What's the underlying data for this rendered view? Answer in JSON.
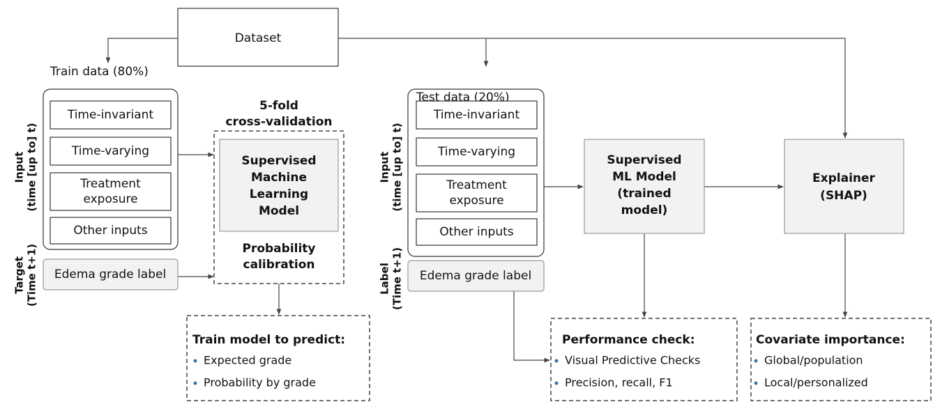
{
  "dataset": "Dataset",
  "train": {
    "title": "Train data (80%)",
    "input_axis": [
      "Input",
      "(time [up to] t)"
    ],
    "inputs": [
      [
        "Time-invariant"
      ],
      [
        "Time-varying"
      ],
      [
        "Treatment",
        "exposure"
      ],
      [
        "Other inputs"
      ]
    ],
    "target_axis": [
      "Target",
      "(Time t+1)"
    ],
    "target": "Edema grade label"
  },
  "cv": {
    "title": [
      "5-fold",
      "cross-validation"
    ],
    "model": [
      "Supervised",
      "Machine",
      "Learning",
      "Model"
    ],
    "calibration": [
      "Probability",
      "calibration"
    ]
  },
  "train_output": {
    "title": "Train model to predict:",
    "items": [
      "Expected grade",
      "Probability by grade"
    ]
  },
  "test": {
    "title": "Test data (20%)",
    "input_axis": [
      "Input",
      "(time [up to] t)"
    ],
    "inputs": [
      [
        "Time-invariant"
      ],
      [
        "Time-varying"
      ],
      [
        "Treatment",
        "exposure"
      ],
      [
        "Other inputs"
      ]
    ],
    "label_axis": [
      "Label",
      "(Time t+1)"
    ],
    "target": "Edema grade label"
  },
  "trained_model": [
    "Supervised",
    "ML Model",
    "(trained",
    "model)"
  ],
  "explainer": [
    "Explainer",
    "(SHAP)"
  ],
  "performance": {
    "title": "Performance check:",
    "items": [
      "Visual Predictive Checks",
      "Precision, recall, F1"
    ]
  },
  "importance": {
    "title": "Covariate importance:",
    "items": [
      "Global/population",
      "Local/personalized"
    ]
  }
}
